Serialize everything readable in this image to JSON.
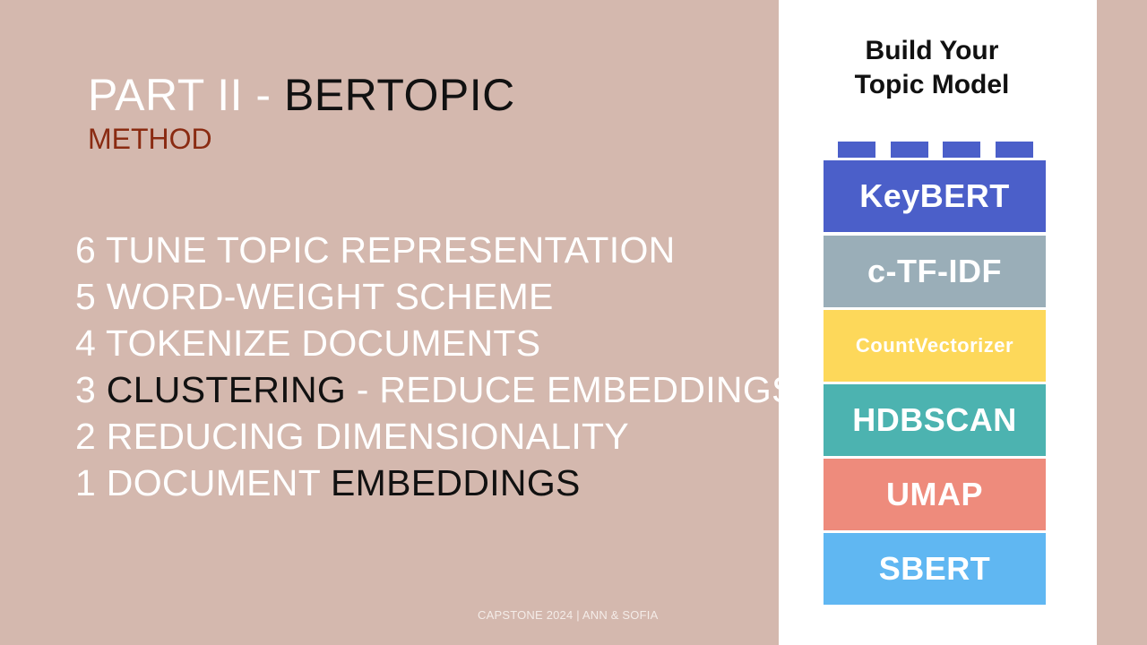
{
  "title": {
    "part": "PART II - ",
    "topic": "BERTOPIC"
  },
  "subtitle": "METHOD",
  "steps": [
    {
      "lead": "6 TUNE TOPIC REPRESENTATION",
      "dark": "",
      "trail": ""
    },
    {
      "lead": "5 WORD-WEIGHT SCHEME",
      "dark": "",
      "trail": ""
    },
    {
      "lead": "4 TOKENIZE DOCUMENTS",
      "dark": "",
      "trail": ""
    },
    {
      "lead": "3 ",
      "dark": "CLUSTERING",
      "trail": "  - REDUCE EMBEDDINGS"
    },
    {
      "lead": "2 REDUCING DIMENSIONALITY",
      "dark": "",
      "trail": ""
    },
    {
      "lead": "1 DOCUMENT ",
      "dark": "EMBEDDINGS",
      "trail": ""
    }
  ],
  "footer": "CAPSTONE 2024 | ANN & SOFIA",
  "panel": {
    "title_line1": "Build Your",
    "title_line2": "Topic Model",
    "stud_color": "#4b5fc9",
    "blocks": [
      {
        "label": "KeyBERT",
        "color": "#4b5fc9"
      },
      {
        "label": "c-TF-IDF",
        "color": "#9aaeb8"
      },
      {
        "label": "CountVectorizer",
        "color": "#fdd85a"
      },
      {
        "label": "HDBSCAN",
        "color": "#4cb3b0"
      },
      {
        "label": "UMAP",
        "color": "#ee8b7c"
      },
      {
        "label": "SBERT",
        "color": "#60b7f2"
      }
    ]
  }
}
